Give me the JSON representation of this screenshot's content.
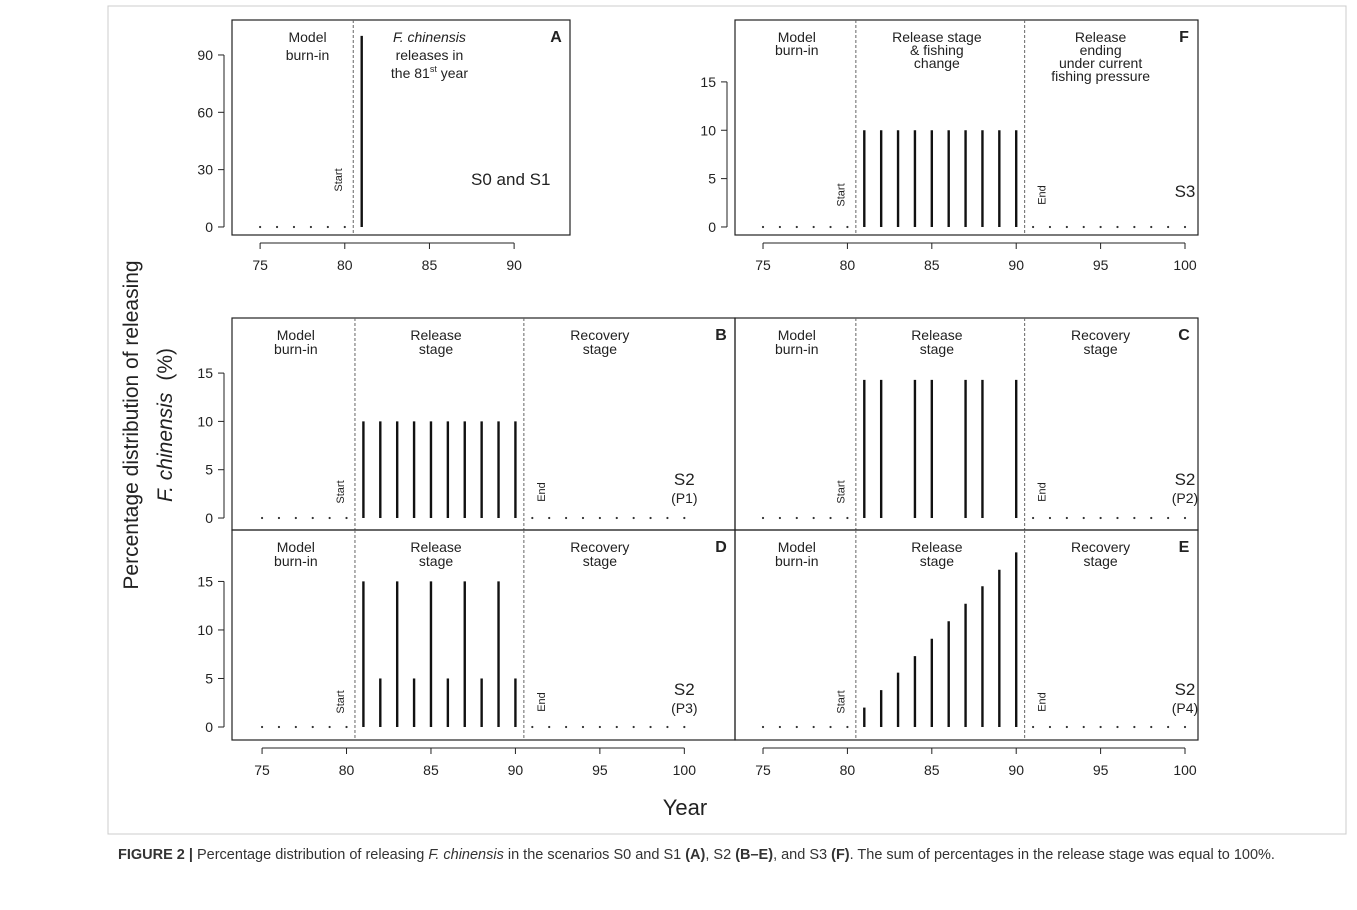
{
  "figure": {
    "y_label": [
      "Percentage distribution of releasing",
      "F. chinensis",
      "(%)"
    ],
    "x_label": "Year"
  },
  "chart_data": [
    {
      "type": "bar",
      "panel_label": "A",
      "x": [
        75,
        76,
        77,
        78,
        79,
        80,
        81
      ],
      "values": [
        0,
        0,
        0,
        0,
        0,
        0,
        100
      ],
      "xlim": [
        73.34,
        93.3
      ],
      "ylim": [
        -4.2,
        108.3
      ],
      "xticks": [
        75,
        80,
        85,
        90
      ],
      "yticks": [
        0,
        30,
        60,
        90
      ],
      "regions": [
        [
          "Model",
          "burn-in"
        ],
        [
          "F. chinensis",
          "releases in",
          [
            "the 81",
            "st",
            " year"
          ]
        ]
      ],
      "markers": [
        "Start"
      ],
      "scenario": [
        "S0 and S1"
      ]
    },
    {
      "type": "bar",
      "panel_label": "F",
      "x": [
        75,
        76,
        77,
        78,
        79,
        80,
        81,
        82,
        83,
        84,
        85,
        86,
        87,
        88,
        89,
        90,
        91,
        92,
        93,
        94,
        95,
        96,
        97,
        98,
        99,
        100
      ],
      "values": [
        0,
        0,
        0,
        0,
        0,
        0,
        10,
        10,
        10,
        10,
        10,
        10,
        10,
        10,
        10,
        10,
        0,
        0,
        0,
        0,
        0,
        0,
        0,
        0,
        0,
        0
      ],
      "xlim": [
        73.34,
        100.77
      ],
      "ylim": [
        -0.83,
        21.4
      ],
      "xticks": [
        75,
        80,
        85,
        90,
        95,
        100
      ],
      "yticks": [
        0,
        5,
        10,
        15
      ],
      "regions": [
        [
          "Model",
          "burn-in"
        ],
        [
          "Release stage",
          "& fishing",
          "change"
        ],
        [
          "Release",
          "ending",
          "under current",
          "fishing pressure"
        ]
      ],
      "markers": [
        "Start",
        "End"
      ],
      "scenario": [
        "S3"
      ]
    },
    {
      "type": "bar",
      "panel_label": "B",
      "x": [
        75,
        76,
        77,
        78,
        79,
        80,
        81,
        82,
        83,
        84,
        85,
        86,
        87,
        88,
        89,
        90,
        91,
        92,
        93,
        94,
        95,
        96,
        97,
        98,
        99,
        100
      ],
      "values": [
        0,
        0,
        0,
        0,
        0,
        0,
        10,
        10,
        10,
        10,
        10,
        10,
        10,
        10,
        10,
        10,
        0,
        0,
        0,
        0,
        0,
        0,
        0,
        0,
        0,
        0
      ],
      "xlim": [
        73.22,
        103.0
      ],
      "ylim": [
        -1.24,
        20.7
      ],
      "yticks": [
        0,
        5,
        10,
        15
      ],
      "regions": [
        [
          "Model",
          "burn-in"
        ],
        [
          "Release",
          "stage"
        ],
        [
          "Recovery",
          "stage"
        ]
      ],
      "markers": [
        "Start",
        "End"
      ],
      "scenario": [
        "S2",
        "(P1)"
      ]
    },
    {
      "type": "bar",
      "panel_label": "C",
      "x": [
        75,
        76,
        77,
        78,
        79,
        80,
        81,
        82,
        84,
        85,
        87,
        88,
        90,
        91,
        92,
        93,
        94,
        95,
        96,
        97,
        98,
        99,
        100
      ],
      "values": [
        0,
        0,
        0,
        0,
        0,
        0,
        14.3,
        14.3,
        14.3,
        14.3,
        14.3,
        14.3,
        14.3,
        0,
        0,
        0,
        0,
        0,
        0,
        0,
        0,
        0,
        0
      ],
      "xlim": [
        73.34,
        100.77
      ],
      "ylim": [
        -1.24,
        20.7
      ],
      "regions": [
        [
          "Model",
          "burn-in"
        ],
        [
          "Release",
          "stage"
        ],
        [
          "Recovery",
          "stage"
        ]
      ],
      "markers": [
        "Start",
        "End"
      ],
      "scenario": [
        "S2",
        "(P2)"
      ]
    },
    {
      "type": "bar",
      "panel_label": "D",
      "x": [
        75,
        76,
        77,
        78,
        79,
        80,
        81,
        82,
        83,
        84,
        85,
        86,
        87,
        88,
        89,
        90,
        91,
        92,
        93,
        94,
        95,
        96,
        97,
        98,
        99,
        100
      ],
      "values": [
        0,
        0,
        0,
        0,
        0,
        0,
        15,
        5,
        15,
        5,
        15,
        5,
        15,
        5,
        15,
        5,
        0,
        0,
        0,
        0,
        0,
        0,
        0,
        0,
        0,
        0
      ],
      "xlim": [
        73.22,
        103.0
      ],
      "ylim": [
        -1.34,
        20.3
      ],
      "xticks": [
        75,
        80,
        85,
        90,
        95,
        100
      ],
      "yticks": [
        0,
        5,
        10,
        15
      ],
      "regions": [
        [
          "Model",
          "burn-in"
        ],
        [
          "Release",
          "stage"
        ],
        [
          "Recovery",
          "stage"
        ]
      ],
      "markers": [
        "Start",
        "End"
      ],
      "scenario": [
        "S2",
        "(P3)"
      ]
    },
    {
      "type": "bar",
      "panel_label": "E",
      "x": [
        75,
        76,
        77,
        78,
        79,
        80,
        81,
        82,
        83,
        84,
        85,
        86,
        87,
        88,
        89,
        90,
        91,
        92,
        93,
        94,
        95,
        96,
        97,
        98,
        99,
        100
      ],
      "values": [
        0,
        0,
        0,
        0,
        0,
        0,
        2,
        3.8,
        5.6,
        7.3,
        9.1,
        10.9,
        12.7,
        14.5,
        16.2,
        18,
        0,
        0,
        0,
        0,
        0,
        0,
        0,
        0,
        0,
        0
      ],
      "xlim": [
        73.34,
        100.77
      ],
      "ylim": [
        -1.34,
        20.3
      ],
      "xticks": [
        75,
        80,
        85,
        90,
        95,
        100
      ],
      "regions": [
        [
          "Model",
          "burn-in"
        ],
        [
          "Release",
          "stage"
        ],
        [
          "Recovery",
          "stage"
        ]
      ],
      "markers": [
        "Start",
        "End"
      ],
      "scenario": [
        "S2",
        "(P4)"
      ]
    }
  ],
  "caption": {
    "label": "FIGURE 2 |",
    "parts": [
      " Percentage distribution of releasing ",
      "F. chinensis",
      " in the scenarios S0 and S1 ",
      "(A)",
      ", S2 ",
      "(B–E)",
      ", and S3 ",
      "(F)",
      ". The sum of percentages in the release stage was equal to 100%."
    ]
  }
}
